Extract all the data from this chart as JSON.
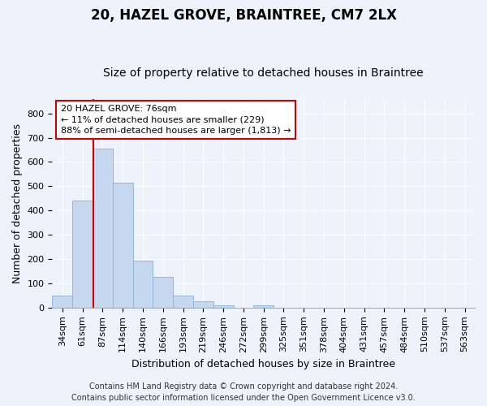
{
  "title": "20, HAZEL GROVE, BRAINTREE, CM7 2LX",
  "subtitle": "Size of property relative to detached houses in Braintree",
  "xlabel": "Distribution of detached houses by size in Braintree",
  "ylabel": "Number of detached properties",
  "bar_labels": [
    "34sqm",
    "61sqm",
    "87sqm",
    "114sqm",
    "140sqm",
    "166sqm",
    "193sqm",
    "219sqm",
    "246sqm",
    "272sqm",
    "299sqm",
    "325sqm",
    "351sqm",
    "378sqm",
    "404sqm",
    "431sqm",
    "457sqm",
    "484sqm",
    "510sqm",
    "537sqm",
    "563sqm"
  ],
  "bar_values": [
    50,
    440,
    655,
    515,
    193,
    125,
    50,
    25,
    10,
    0,
    8,
    0,
    0,
    0,
    0,
    0,
    0,
    0,
    0,
    0,
    0
  ],
  "bar_color": "#c5d8f0",
  "bar_edge_color": "#8ab0d8",
  "ylim": [
    0,
    860
  ],
  "yticks": [
    0,
    100,
    200,
    300,
    400,
    500,
    600,
    700,
    800
  ],
  "vline_x": 1.55,
  "vline_color": "#cc0000",
  "annotation_text": "20 HAZEL GROVE: 76sqm\n← 11% of detached houses are smaller (229)\n88% of semi-detached houses are larger (1,813) →",
  "annotation_box_color": "#ffffff",
  "annotation_box_edge": "#cc0000",
  "footer_line1": "Contains HM Land Registry data © Crown copyright and database right 2024.",
  "footer_line2": "Contains public sector information licensed under the Open Government Licence v3.0.",
  "background_color": "#eef2fa",
  "grid_color": "#ffffff",
  "title_fontsize": 12,
  "subtitle_fontsize": 10,
  "axis_label_fontsize": 9,
  "tick_fontsize": 8,
  "annotation_fontsize": 8,
  "footer_fontsize": 7
}
